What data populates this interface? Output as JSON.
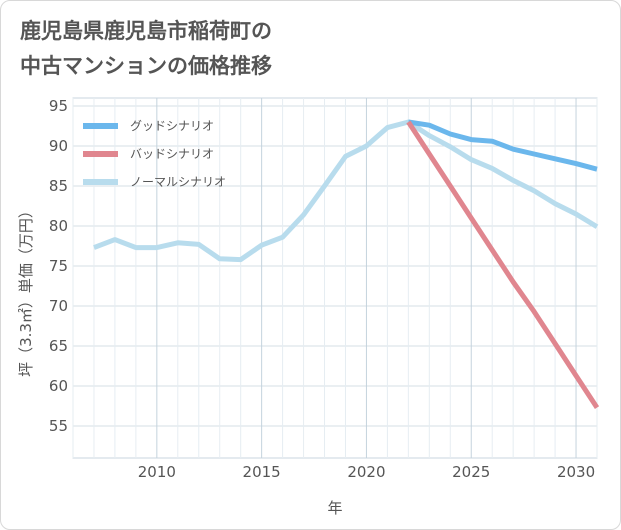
{
  "title_lines": [
    "鹿児島県鹿児島市稲荷町の",
    "中古マンションの価格推移"
  ],
  "chart_data": {
    "type": "line",
    "title": "鹿児島県鹿児島市稲荷町の中古マンションの価格推移",
    "xlabel": "年",
    "ylabel": "坪（3.3㎡）単価（万円）",
    "xlim": [
      2006,
      2031
    ],
    "ylim": [
      51,
      96
    ],
    "xticks": [
      2010,
      2015,
      2020,
      2025,
      2030
    ],
    "yticks": [
      55,
      60,
      65,
      70,
      75,
      80,
      85,
      90,
      95
    ],
    "grid": true,
    "legend_position": "top-left",
    "series": [
      {
        "name": "グッドシナリオ",
        "color": "#6bb7ec",
        "x": [
          2022,
          2023,
          2024,
          2025,
          2026,
          2027,
          2028,
          2029,
          2030,
          2031
        ],
        "y": [
          93.0,
          92.6,
          91.5,
          90.8,
          90.6,
          89.6,
          89.0,
          88.4,
          87.8,
          87.1
        ]
      },
      {
        "name": "バッドシナリオ",
        "color": "#e0868f",
        "x": [
          2022,
          2023,
          2024,
          2025,
          2026,
          2027,
          2028,
          2029,
          2030,
          2031
        ],
        "y": [
          93.0,
          89.0,
          85.0,
          81.0,
          77.0,
          73.0,
          69.3,
          65.3,
          61.3,
          57.3
        ]
      },
      {
        "name": "ノーマルシナリオ",
        "color": "#b8dced",
        "x": [
          2007,
          2008,
          2009,
          2010,
          2011,
          2012,
          2013,
          2014,
          2015,
          2016,
          2017,
          2018,
          2019,
          2020,
          2021,
          2022,
          2023,
          2024,
          2025,
          2026,
          2027,
          2028,
          2029,
          2030,
          2031
        ],
        "y": [
          77.3,
          78.3,
          77.3,
          77.3,
          77.9,
          77.7,
          75.9,
          75.8,
          77.6,
          78.6,
          81.4,
          85.0,
          88.7,
          90.0,
          92.3,
          93.0,
          91.3,
          89.9,
          88.3,
          87.2,
          85.7,
          84.4,
          82.8,
          81.5,
          79.9
        ]
      }
    ]
  }
}
